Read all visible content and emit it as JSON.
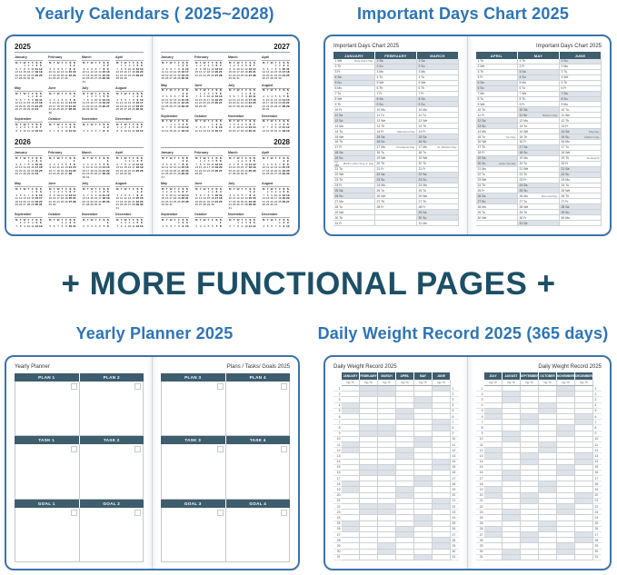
{
  "banner": {
    "text": "+ MORE FUNCTIONAL PAGES +",
    "color": "#1d4f66"
  },
  "colors": {
    "title_blue": "#2e74b5",
    "spread_border": "#3c73a8",
    "header_bar": "#3e5d6e",
    "weekend_shade": "#dde3e8"
  },
  "sections": {
    "yearly_calendars": {
      "title": "Yearly Calendars ( 2025~2028)",
      "years": [
        2025,
        2026,
        2027,
        2028
      ],
      "weekday_header": [
        "M",
        "T",
        "W",
        "T",
        "F",
        "S",
        "S"
      ],
      "month_names": [
        "January",
        "February",
        "March",
        "April",
        "May",
        "June",
        "July",
        "August",
        "September",
        "October",
        "November",
        "December"
      ]
    },
    "important_days": {
      "title": "Important Days Chart 2025",
      "page_label": "Important Days Chart 2025",
      "year": 2025,
      "months_left": [
        "JANUARY",
        "FEBRUARY",
        "MARCH"
      ],
      "months_right": [
        "APRIL",
        "MAY",
        "JUNE"
      ],
      "weekday_abbr": [
        "Mo",
        "Tu",
        "We",
        "Th",
        "Fr",
        "Sa",
        "Su"
      ],
      "holidays": {
        "1-1": "New Year's Day",
        "1-20": "Martin Luther King Jr. Day",
        "2-14": "Valentine's Day",
        "2-17": "Presidents' Day",
        "3-17": "St. Patrick's Day",
        "4-15": "Tax Day",
        "4-20": "Easter Sunday",
        "5-11": "Mother's Day",
        "5-26": "Memorial Day",
        "6-14": "Flag Day",
        "6-15": "Father's Day",
        "6-19": "Juneteenth"
      }
    },
    "yearly_planner": {
      "title": "Yearly Planner 2025",
      "left_label": "Yearly Planner",
      "right_label": "Plans / Tasks/ Goals 2025",
      "left_headers": [
        [
          "PLAN 1",
          "PLAN 2"
        ],
        [
          "TASK 1",
          "TASK 2"
        ],
        [
          "GOAL 1",
          "GOAL 2"
        ]
      ],
      "right_headers": [
        [
          "PLAN 3",
          "PLAN 4"
        ],
        [
          "TASK 3",
          "TASK 4"
        ],
        [
          "GOAL 3",
          "GOAL 4"
        ]
      ]
    },
    "weight_record": {
      "title": "Daily Weight Record 2025 (365 days)",
      "page_label": "Daily Weight Record 2025",
      "year": 2025,
      "months_left": [
        "JANUARY",
        "FEBRUARY",
        "MARCH",
        "APRIL",
        "MAY",
        "JUNE"
      ],
      "months_right": [
        "JULY",
        "AUGUST",
        "SEPTEMBER",
        "OCTOBER",
        "NOVEMBER",
        "DECEMBER"
      ],
      "unit_label": "kg / lb"
    }
  }
}
